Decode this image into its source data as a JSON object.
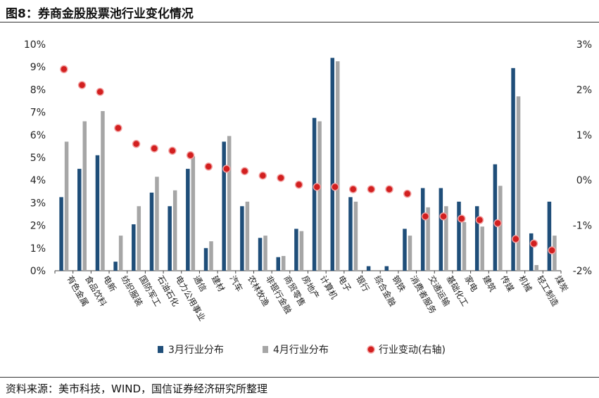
{
  "header": {
    "title": "图8：券商金股股票池行业变化情况"
  },
  "footer": {
    "source": "资料来源：美市科技，WIND，国信证券经济研究所整理"
  },
  "colors": {
    "march": "#1f4e79",
    "april": "#a6a6a6",
    "change": "#d21f1f",
    "change_edge": "#f2a0a0"
  },
  "chart_data": {
    "type": "bar",
    "title": "券商金股股票池行业变化情况",
    "xlabel": "",
    "ylabel": "",
    "categories": [
      "有色金属",
      "食品饮料",
      "电新",
      "纺织服装",
      "国防军工",
      "石油石化",
      "电力公用事业",
      "通信",
      "建材",
      "汽车",
      "农林牧渔",
      "非银行金融",
      "商贸零售",
      "房地产",
      "计算机",
      "电子",
      "银行",
      "综合金融",
      "钢铁",
      "消费者服务",
      "交通运输",
      "基础化工",
      "家电",
      "建筑",
      "传媒",
      "机械",
      "轻工制造",
      "煤炭"
    ],
    "ylim": [
      0,
      10
    ],
    "y_ticks": [
      "0%",
      "1%",
      "2%",
      "3%",
      "4%",
      "5%",
      "6%",
      "7%",
      "8%",
      "9%",
      "10%"
    ],
    "y2lim": [
      -2,
      3
    ],
    "y2_ticks": [
      "-2%",
      "-1%",
      "0%",
      "1%",
      "2%",
      "3%"
    ],
    "series": [
      {
        "name": "3月行业分布",
        "type": "bar",
        "axis": "left",
        "values": [
          3.25,
          4.5,
          5.1,
          0.4,
          2.05,
          3.45,
          2.85,
          4.5,
          1.0,
          5.7,
          2.85,
          1.45,
          0.6,
          1.85,
          6.75,
          9.4,
          3.25,
          0.2,
          0.2,
          1.85,
          3.65,
          3.65,
          3.05,
          2.85,
          4.7,
          8.95,
          1.65,
          3.05
        ]
      },
      {
        "name": "4月行业分布",
        "type": "bar",
        "axis": "left",
        "values": [
          5.7,
          6.6,
          7.05,
          1.55,
          2.85,
          4.15,
          3.55,
          5.05,
          1.3,
          5.95,
          3.05,
          1.55,
          0.65,
          1.75,
          6.6,
          9.25,
          3.05,
          0.0,
          0.0,
          1.55,
          2.8,
          2.85,
          2.15,
          1.95,
          3.75,
          7.7,
          0.25,
          1.55
        ]
      },
      {
        "name": "行业变动(右轴)",
        "type": "scatter",
        "axis": "right",
        "values": [
          2.45,
          2.1,
          1.95,
          1.15,
          0.8,
          0.7,
          0.65,
          0.55,
          0.3,
          0.25,
          0.2,
          0.1,
          0.05,
          -0.1,
          -0.15,
          -0.15,
          -0.2,
          -0.2,
          -0.2,
          -0.3,
          -0.8,
          -0.8,
          -0.85,
          -0.88,
          -0.95,
          -1.3,
          -1.4,
          -1.55
        ]
      }
    ],
    "legend_position": "bottom",
    "grid": false
  }
}
